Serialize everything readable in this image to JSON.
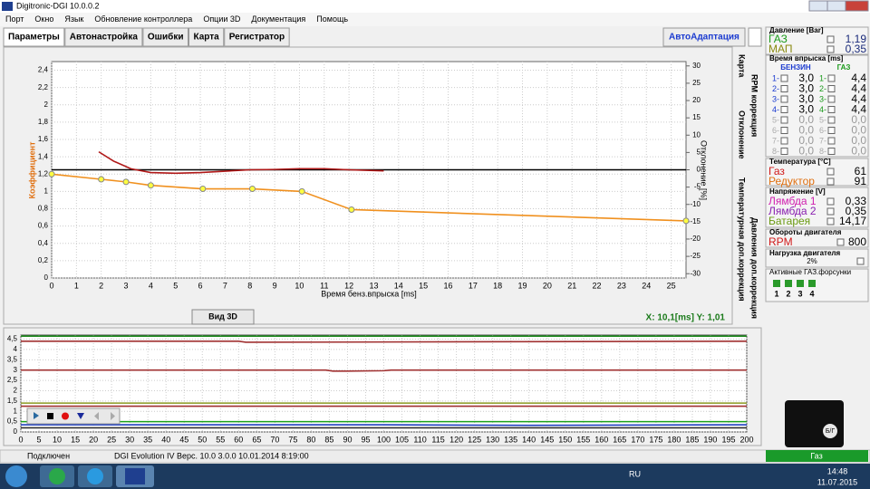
{
  "window": {
    "title": "Digitronic-DGI  10.0.0.2",
    "menu": [
      "Порт",
      "Окно",
      "Язык",
      "Обновление контроллера",
      "Опции 3D",
      "Документация",
      "Помощь"
    ],
    "tabs": [
      "Параметры",
      "Автонастройка",
      "Ошибки",
      "Карта",
      "Регистратор"
    ],
    "auto_button": "АвтоАдаптация",
    "side_tabs": [
      "Карта",
      "RPM коррекция",
      "Отклонение",
      "Температурная доп.коррекция",
      "Давления доп.коррекция"
    ]
  },
  "main_chart": {
    "type": "line",
    "ylabel": "Коэффициент",
    "y2label": "Отклонение [%]",
    "xlabel": "Время бенз.впрыска [ms]",
    "xlim": [
      0,
      25.6
    ],
    "xticks": [
      0,
      1,
      2,
      3,
      4,
      5,
      6,
      7,
      8,
      9,
      10,
      11,
      12,
      13,
      14,
      15,
      16,
      17,
      18,
      19,
      20,
      21,
      22,
      23,
      24,
      25
    ],
    "ylim": [
      0,
      2.5
    ],
    "yticks": [
      0,
      {
        "value": 0.2,
        "label": "0,2"
      },
      {
        "value": 0.4,
        "label": "0,4"
      },
      {
        "value": 0.6,
        "label": "0,6"
      },
      {
        "value": 0.8,
        "label": "0,8"
      },
      1,
      {
        "value": 1.2,
        "label": "1,2"
      },
      {
        "value": 1.4,
        "label": "1,4"
      },
      {
        "value": 1.6,
        "label": "1,6"
      },
      {
        "value": 1.8,
        "label": "1,8"
      },
      2,
      {
        "value": 2.2,
        "label": "2,2"
      },
      {
        "value": 2.4,
        "label": "2,4"
      }
    ],
    "y2lim": [
      -31.25,
      31.25
    ],
    "y2ticks": [
      -30,
      -25,
      -20,
      -15,
      -10,
      -5,
      0,
      5,
      10,
      15,
      20,
      25,
      30
    ],
    "y2_reference": 0,
    "grid": true,
    "series": [
      {
        "color": "#f0901e",
        "x": [
          0,
          2,
          3,
          4,
          6.1,
          8.1,
          10.1,
          12.1,
          25.6
        ],
        "values": [
          1.2,
          1.14,
          1.11,
          1.07,
          1.03,
          1.03,
          1.0,
          0.79,
          0.66
        ]
      },
      {
        "color": "#b01818",
        "axis": "y2",
        "x": [
          1.9,
          2.5,
          3.2,
          4,
          5,
          6,
          7,
          8,
          9,
          10,
          11,
          12,
          13.4
        ],
        "values": [
          5.2,
          2.5,
          0.3,
          -0.8,
          -1.0,
          -0.8,
          -0.4,
          0,
          0.1,
          0.3,
          0.3,
          0,
          -0.3
        ]
      }
    ],
    "view_button": "Вид 3D",
    "cursor": "X: 10,1[ms]  Y: 1,01"
  },
  "bottom_chart": {
    "type": "line",
    "xlim": [
      0,
      200
    ],
    "xticks": [
      0,
      5,
      10,
      15,
      20,
      25,
      30,
      35,
      40,
      45,
      50,
      55,
      60,
      65,
      70,
      75,
      80,
      85,
      90,
      95,
      100,
      105,
      110,
      115,
      120,
      125,
      130,
      135,
      140,
      145,
      150,
      155,
      160,
      165,
      170,
      175,
      180,
      185,
      190,
      195,
      200
    ],
    "ylim": [
      0,
      4.7
    ],
    "yticks": [
      0,
      {
        "value": 0.5,
        "label": "0,5"
      },
      1,
      {
        "value": 1.5,
        "label": "1,5"
      },
      2,
      {
        "value": 2.5,
        "label": "2,5"
      },
      3,
      {
        "value": 3.5,
        "label": "3,5"
      },
      4,
      {
        "value": 4.5,
        "label": "4,5"
      }
    ],
    "series": [
      {
        "color": "#1a8a1a",
        "x": [
          0,
          200
        ],
        "values": [
          4.65,
          4.65
        ]
      },
      {
        "color": "#a03030",
        "x": [
          0,
          60,
          62,
          200
        ],
        "values": [
          4.4,
          4.4,
          4.35,
          4.4
        ]
      },
      {
        "color": "#a03030",
        "x": [
          0,
          84,
          86,
          90,
          100,
          102,
          200
        ],
        "values": [
          3.0,
          3.0,
          2.95,
          2.95,
          2.97,
          3.0,
          3.0
        ]
      },
      {
        "color": "#8a9a20",
        "x": [
          0,
          200
        ],
        "values": [
          1.4,
          1.4
        ]
      },
      {
        "color": "#a03030",
        "x": [
          0,
          200
        ],
        "values": [
          1.25,
          1.25
        ]
      },
      {
        "color": "#1aa01a",
        "x": [
          0,
          200
        ],
        "values": [
          0.5,
          0.5
        ]
      },
      {
        "color": "#2040c0",
        "x": [
          0,
          100,
          140,
          200
        ],
        "values": [
          0.35,
          0.35,
          0.32,
          0.35
        ]
      },
      {
        "color": "#303030",
        "x": [
          0,
          200
        ],
        "values": [
          0.2,
          0.2
        ]
      }
    ]
  },
  "panel": {
    "pressure": {
      "title": "Давление [Bar]",
      "rows": [
        {
          "label": "ГАЗ",
          "value": "1,19"
        },
        {
          "label": "МАП",
          "value": "0,35"
        }
      ]
    },
    "injection": {
      "title": "Время впрыска [ms]",
      "col1": "БЕНЗИН",
      "col2": "ГАЗ",
      "rows": [
        {
          "label": "1-",
          "petrol": "3,0",
          "gas": "4,4"
        },
        {
          "label": "2-",
          "petrol": "3,0",
          "gas": "4,4"
        },
        {
          "label": "3-",
          "petrol": "3,0",
          "gas": "4,4"
        },
        {
          "label": "4-",
          "petrol": "3,0",
          "gas": "4,4"
        },
        {
          "label": "5-",
          "petrol": "0,0",
          "gas": "0,0"
        },
        {
          "label": "6-",
          "petrol": "0,0",
          "gas": "0,0"
        },
        {
          "label": "7-",
          "petrol": "0,0",
          "gas": "0,0"
        },
        {
          "label": "8-",
          "petrol": "0,0",
          "gas": "0,0"
        }
      ]
    },
    "temperature": {
      "title": "Температура [°C]",
      "rows": [
        {
          "label": "Газ",
          "value": "61"
        },
        {
          "label": "Редуктор",
          "value": "91"
        }
      ]
    },
    "voltage": {
      "title": "Напряжение [V]",
      "rows": [
        {
          "label": "Лямбда 1",
          "value": "0,33"
        },
        {
          "label": "Лямбда 2",
          "value": "0,35"
        },
        {
          "label": "Батарея",
          "value": "14,17"
        }
      ]
    },
    "rpm": {
      "title": "Обороты двигателя",
      "label": "RPM",
      "value": "800"
    },
    "load": {
      "title": "Нагрузка двигателя",
      "value": "2%"
    },
    "injectors": {
      "title": "Активные ГАЗ.форсунки",
      "items": [
        "1",
        "2",
        "3",
        "4"
      ]
    },
    "fuel_badge": "Б/Г",
    "mode": "Газ"
  },
  "status": {
    "connection": "Подключен",
    "device": "DGI Evolution IV   Верс. 10.0  3.0.0    10.01.2014 8:19:00"
  },
  "taskbar": {
    "lang": "RU",
    "time": "14:48",
    "date": "11.07.2015"
  }
}
